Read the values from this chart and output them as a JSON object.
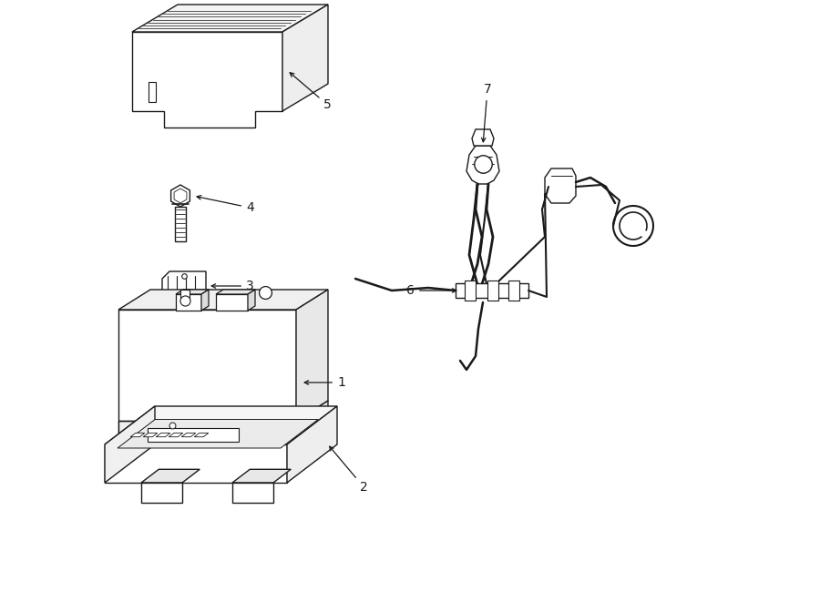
{
  "bg_color": "#ffffff",
  "line_color": "#1a1a1a",
  "lw": 1.0,
  "fig_w": 9.0,
  "fig_h": 6.61,
  "dpi": 100
}
